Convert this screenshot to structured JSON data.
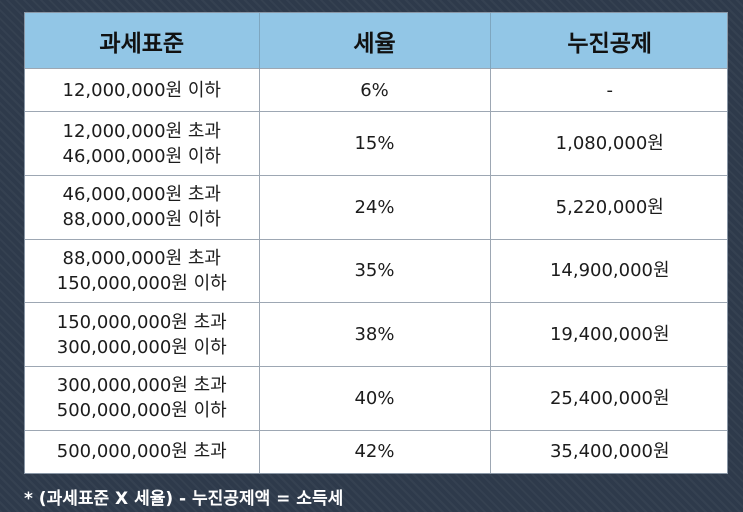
{
  "table": {
    "headers": [
      "과세표준",
      "세율",
      "누진공제"
    ],
    "rows": [
      {
        "bracket": [
          "12,000,000원 이하"
        ],
        "rate": "6%",
        "deduction": "-"
      },
      {
        "bracket": [
          "12,000,000원 초과",
          "46,000,000원 이하"
        ],
        "rate": "15%",
        "deduction": "1,080,000원"
      },
      {
        "bracket": [
          "46,000,000원 초과",
          "88,000,000원 이하"
        ],
        "rate": "24%",
        "deduction": "5,220,000원"
      },
      {
        "bracket": [
          "88,000,000원 초과",
          "150,000,000원 이하"
        ],
        "rate": "35%",
        "deduction": "14,900,000원"
      },
      {
        "bracket": [
          "150,000,000원 초과",
          "300,000,000원 이하"
        ],
        "rate": "38%",
        "deduction": "19,400,000원"
      },
      {
        "bracket": [
          "300,000,000원 초과",
          "500,000,000원 이하"
        ],
        "rate": "40%",
        "deduction": "25,400,000원"
      },
      {
        "bracket": [
          "500,000,000원 초과"
        ],
        "rate": "42%",
        "deduction": "35,400,000원"
      }
    ]
  },
  "footnote": "* (과세표준 X 세율) - 누진공제액 = 소득세",
  "colors": {
    "header_background": "#92c6e6",
    "page_background": "#2e3a4b",
    "footnote_text": "#ffffff"
  }
}
